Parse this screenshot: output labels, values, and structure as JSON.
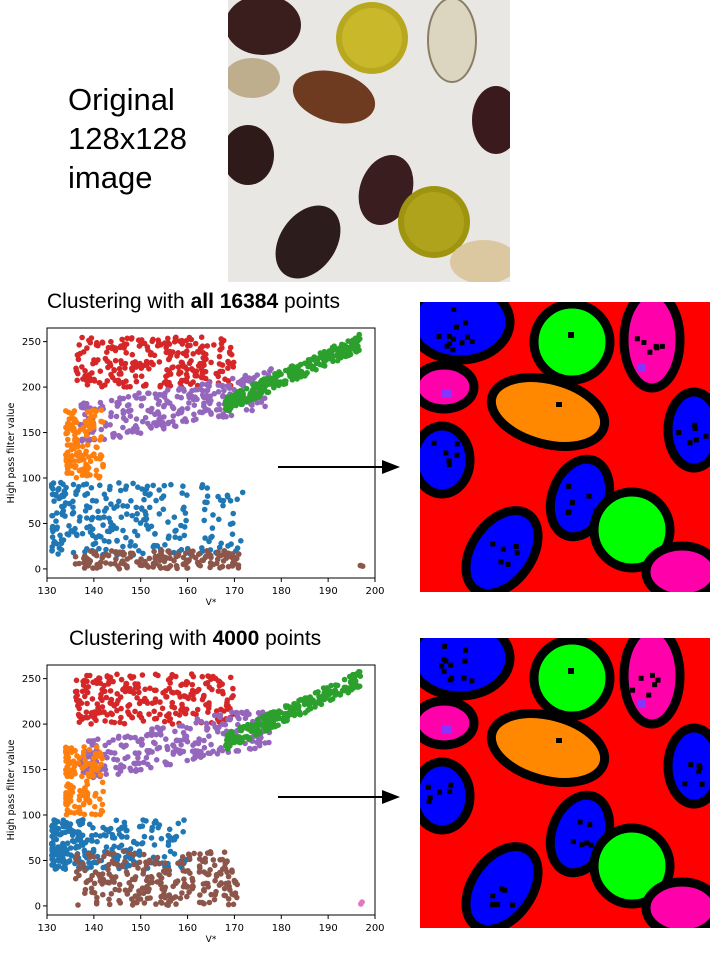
{
  "caption": {
    "line1": "Original",
    "line2": "128x128",
    "line3": "image"
  },
  "panels": [
    {
      "title_prefix": "Clustering with ",
      "title_bold": "all 16384",
      "title_suffix": " points"
    },
    {
      "title_prefix": "Clustering with ",
      "title_bold": "4000",
      "title_suffix": " points"
    }
  ],
  "colors": {
    "blue": "#1f77b4",
    "orange": "#ff7f0e",
    "green": "#2ca02c",
    "red": "#d62728",
    "purple": "#9467bd",
    "brown": "#8c564b",
    "pink": "#e377c2",
    "seg_bg": "#ff0000",
    "seg_blue": "#0000ff",
    "seg_green": "#00ff00",
    "seg_orange": "#ff8800",
    "seg_magenta": "#ff00aa",
    "seg_purple": "#8833ff"
  },
  "chart_data": [
    {
      "type": "scatter",
      "title": "",
      "xlabel": "V*",
      "ylabel": "High pass filter value",
      "xlim": [
        130,
        200
      ],
      "ylim": [
        -10,
        265
      ],
      "xticks": [
        130,
        140,
        150,
        160,
        170,
        180,
        190,
        200
      ],
      "yticks": [
        0,
        50,
        100,
        150,
        200,
        250
      ],
      "grid": false,
      "series": [
        {
          "color": "red",
          "regions": [
            [
              136,
              170,
              200,
              255
            ]
          ]
        },
        {
          "color": "purple",
          "regions": [
            [
              137,
              178,
              140,
              205
            ]
          ]
        },
        {
          "color": "orange",
          "regions": [
            [
              134,
              142,
              100,
              175
            ]
          ]
        },
        {
          "color": "green",
          "regions": [
            [
              168,
              197,
              180,
              255
            ]
          ]
        },
        {
          "color": "blue",
          "regions": [
            [
              131,
              172,
              15,
              95
            ]
          ]
        },
        {
          "color": "brown",
          "regions": [
            [
              136,
              171,
              0,
              20
            ],
            [
              196.5,
              197.5,
              0,
              5
            ]
          ]
        }
      ]
    },
    {
      "type": "scatter",
      "title": "",
      "xlabel": "V*",
      "ylabel": "High pass filter value",
      "xlim": [
        130,
        200
      ],
      "ylim": [
        -10,
        265
      ],
      "xticks": [
        130,
        140,
        150,
        160,
        170,
        180,
        190,
        200
      ],
      "yticks": [
        0,
        50,
        100,
        150,
        200,
        250
      ],
      "grid": false,
      "series": [
        {
          "color": "red",
          "regions": [
            [
              136,
              170,
              200,
              255
            ]
          ]
        },
        {
          "color": "purple",
          "regions": [
            [
              137,
              178,
              140,
              205
            ]
          ]
        },
        {
          "color": "orange",
          "regions": [
            [
              134,
              142,
              100,
              175
            ]
          ]
        },
        {
          "color": "green",
          "regions": [
            [
              168,
              197,
              180,
              255
            ]
          ]
        },
        {
          "color": "blue",
          "regions": [
            [
              131,
              160,
              40,
              95
            ]
          ]
        },
        {
          "color": "brown",
          "regions": [
            [
              136,
              171,
              0,
              60
            ]
          ]
        },
        {
          "color": "pink",
          "regions": [
            [
              196.5,
              197.5,
              0,
              5
            ]
          ]
        }
      ]
    }
  ]
}
